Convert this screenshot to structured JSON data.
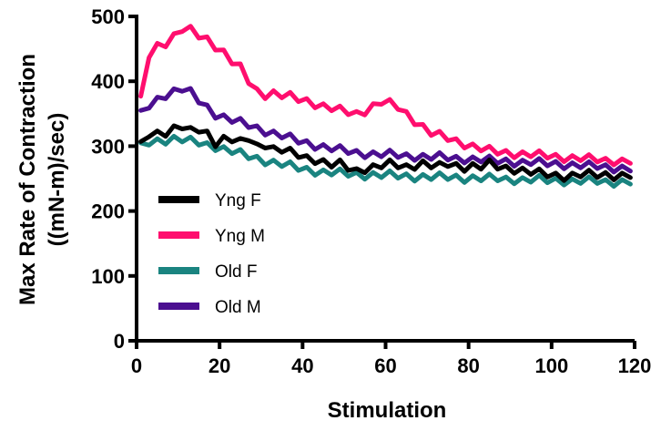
{
  "chart_data": {
    "type": "line",
    "title": "",
    "xlabel": "Stimulation",
    "ylabel_line1": "Max Rate of Contraction",
    "ylabel_line2": "((mN-m)/sec)",
    "xlim": [
      0,
      120
    ],
    "ylim": [
      0,
      500
    ],
    "xticks": [
      0,
      20,
      40,
      60,
      80,
      100,
      120
    ],
    "yticks": [
      0,
      100,
      200,
      300,
      400,
      500
    ],
    "grid": false,
    "legend_position": "left",
    "x": [
      1,
      3,
      5,
      7,
      9,
      11,
      13,
      15,
      17,
      19,
      21,
      23,
      25,
      27,
      29,
      31,
      33,
      35,
      37,
      39,
      41,
      43,
      45,
      47,
      49,
      51,
      53,
      55,
      57,
      59,
      61,
      63,
      65,
      67,
      69,
      71,
      73,
      75,
      77,
      79,
      81,
      83,
      85,
      87,
      89,
      91,
      93,
      95,
      97,
      99,
      101,
      103,
      105,
      107,
      109,
      111,
      113,
      115,
      117,
      119
    ],
    "series": [
      {
        "name": "Yng F",
        "color": "#000000",
        "values": [
          300,
          318,
          320,
          322,
          328,
          330,
          322,
          325,
          320,
          306,
          312,
          310,
          305,
          312,
          300,
          304,
          296,
          294,
          290,
          286,
          282,
          280,
          276,
          271,
          272,
          266,
          262,
          266,
          268,
          270,
          272,
          270,
          268,
          271,
          274,
          270,
          268,
          272,
          270,
          268,
          270,
          268,
          272,
          268,
          266,
          265,
          263,
          260,
          258,
          256,
          255,
          254,
          255,
          256,
          256,
          255,
          256,
          255,
          255,
          255
        ]
      },
      {
        "name": "Yng M",
        "color": "#ff0e6e",
        "values": [
          370,
          440,
          455,
          460,
          470,
          480,
          478,
          470,
          465,
          455,
          445,
          430,
          420,
          400,
          385,
          380,
          382,
          378,
          376,
          372,
          370,
          366,
          362,
          358,
          355,
          352,
          350,
          355,
          362,
          368,
          365,
          360,
          350,
          340,
          330,
          320,
          316,
          312,
          308,
          304,
          300,
          296,
          293,
          291,
          290,
          289,
          288,
          287,
          286,
          285,
          284,
          283,
          282,
          281,
          280,
          279,
          278,
          278,
          277,
          277
        ]
      },
      {
        "name": "Old F",
        "color": "#1a8480",
        "values": [
          298,
          305,
          308,
          310,
          312,
          310,
          307,
          305,
          302,
          300,
          296,
          292,
          288,
          284,
          281,
          278,
          275,
          272,
          269,
          266,
          264,
          262,
          260,
          259,
          258,
          257,
          256,
          256,
          256,
          255,
          255,
          254,
          254,
          253,
          253,
          252,
          252,
          252,
          252,
          251,
          251,
          250,
          250,
          250,
          249,
          249,
          248,
          248,
          248,
          247,
          247,
          247,
          246,
          246,
          246,
          246,
          245,
          245,
          245,
          245
        ]
      },
      {
        "name": "Old M",
        "color": "#4b0f90",
        "values": [
          348,
          362,
          372,
          380,
          385,
          388,
          382,
          370,
          360,
          350,
          345,
          340,
          336,
          332,
          328,
          324,
          320,
          316,
          312,
          308,
          305,
          302,
          299,
          296,
          294,
          292,
          290,
          289,
          288,
          287,
          287,
          286,
          285,
          285,
          284,
          283,
          283,
          282,
          281,
          281,
          280,
          279,
          278,
          277,
          277,
          276,
          275,
          275,
          274,
          273,
          273,
          272,
          271,
          270,
          269,
          269,
          268,
          267,
          266,
          265
        ]
      }
    ]
  }
}
